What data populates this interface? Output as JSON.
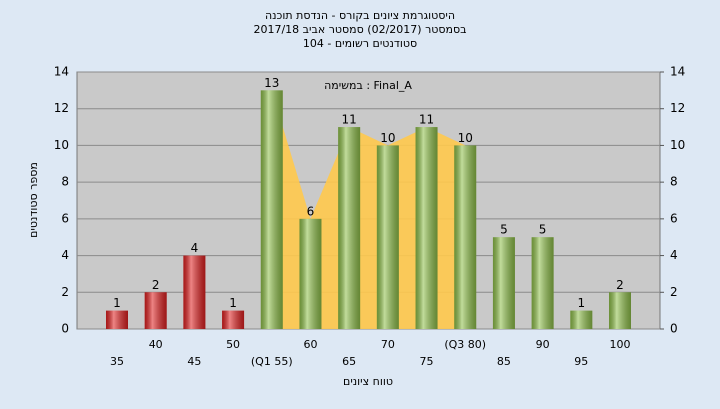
{
  "chart_data": {
    "type": "bar",
    "title": [
      "היסטוגרמת ציונים בקורס - הנדסת תוכנה",
      "בסמסטר  (02/2017)  סמסטר אביב 2017/18",
      "סטודנטים רשומים - 104"
    ],
    "annotation": "במשימה : Final_A",
    "x_label": "טווח ציונים",
    "y_label": "מספר סטודנטים",
    "categories": [
      "35",
      "40",
      "45",
      "50",
      "(Q1 55)",
      "60",
      "65",
      "70",
      "75",
      "(Q3 80)",
      "85",
      "90",
      "95",
      "100"
    ],
    "values": [
      1,
      2,
      4,
      1,
      13,
      6,
      11,
      10,
      11,
      10,
      5,
      5,
      1,
      2
    ],
    "colors": [
      "#e02020",
      "#e02020",
      "#e02020",
      "#e02020",
      "#8fc04a",
      "#8fc04a",
      "#8fc04a",
      "#8fc04a",
      "#8fc04a",
      "#8fc04a",
      "#8fc04a",
      "#8fc04a",
      "#8fc04a",
      "#8fc04a"
    ],
    "ylim": [
      0,
      14
    ],
    "yticks": [
      0,
      2,
      4,
      6,
      8,
      10,
      12,
      14
    ],
    "y2lim": [
      0,
      14
    ],
    "y2ticks": [
      0,
      2,
      4,
      6,
      8,
      10,
      12,
      14
    ],
    "grid": true
  }
}
